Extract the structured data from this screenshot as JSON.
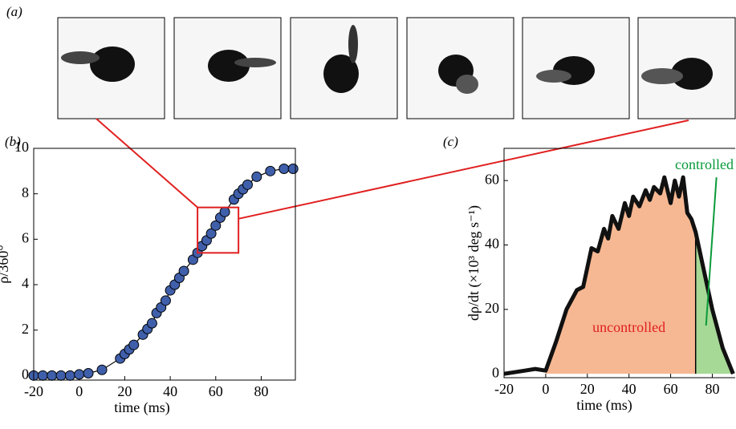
{
  "panel_labels": [
    "(a)",
    "(b)",
    "(c)"
  ],
  "chart_data": [
    {
      "type": "scatter",
      "xlabel": "time (ms)",
      "ylabel": "ρ/360°",
      "x": [
        -20,
        -16,
        -12,
        -8,
        -4,
        0,
        4,
        10,
        18,
        20,
        22,
        24,
        28,
        30,
        32,
        34,
        36,
        38,
        40,
        42,
        44,
        46,
        50,
        52,
        54,
        56,
        58,
        60,
        62,
        64,
        68,
        70,
        72,
        74,
        78,
        84,
        90,
        94
      ],
      "y": [
        0,
        0,
        0,
        0,
        0,
        0.05,
        0.1,
        0.25,
        0.75,
        0.95,
        1.15,
        1.35,
        1.8,
        2.05,
        2.3,
        2.75,
        3.0,
        3.3,
        3.75,
        4.0,
        4.3,
        4.6,
        5.1,
        5.4,
        5.7,
        5.95,
        6.25,
        6.6,
        6.95,
        7.2,
        7.75,
        8.0,
        8.2,
        8.4,
        8.75,
        9.0,
        9.1,
        9.1
      ],
      "color": "#3f5faa",
      "zoom_box": {
        "x": [
          52,
          70
        ],
        "y": [
          5.4,
          7.4
        ],
        "color": "#e02020"
      },
      "xlim": [
        -20,
        95
      ],
      "ylim": [
        -0.2,
        10
      ],
      "xticks": [
        -20,
        0,
        20,
        40,
        60,
        80
      ],
      "yticks": [
        0,
        2,
        4,
        6,
        8,
        10
      ]
    },
    {
      "type": "area",
      "xlabel": "time (ms)",
      "ylabel": "dρ/dt (×10³ deg s⁻¹)",
      "x": [
        -20,
        -10,
        -5,
        0,
        5,
        10,
        15,
        18,
        20,
        22,
        25,
        28,
        30,
        32,
        35,
        38,
        40,
        42,
        45,
        48,
        50,
        52,
        55,
        57,
        60,
        62,
        64,
        66,
        68,
        70,
        72,
        75,
        80,
        85,
        90
      ],
      "y": [
        0,
        1,
        1.5,
        1,
        10,
        20,
        26,
        27,
        33,
        39,
        38,
        45,
        42,
        49,
        45,
        53,
        49,
        55,
        52,
        57,
        54,
        58,
        56,
        61,
        53,
        60,
        55,
        61,
        50,
        48,
        44,
        35,
        20,
        8,
        0
      ],
      "split_x": 72,
      "regions": [
        {
          "name": "uncontrolled",
          "color": "#f6b893",
          "label_color": "#e02020"
        },
        {
          "name": "controlled",
          "color": "#a6d996",
          "label_color": "#0a9a3a"
        }
      ],
      "xlim": [
        -20,
        91
      ],
      "ylim": [
        -1.2,
        70
      ],
      "xticks": [
        -20,
        0,
        20,
        40,
        60,
        80
      ],
      "yticks": [
        0,
        20,
        40,
        60
      ]
    }
  ]
}
